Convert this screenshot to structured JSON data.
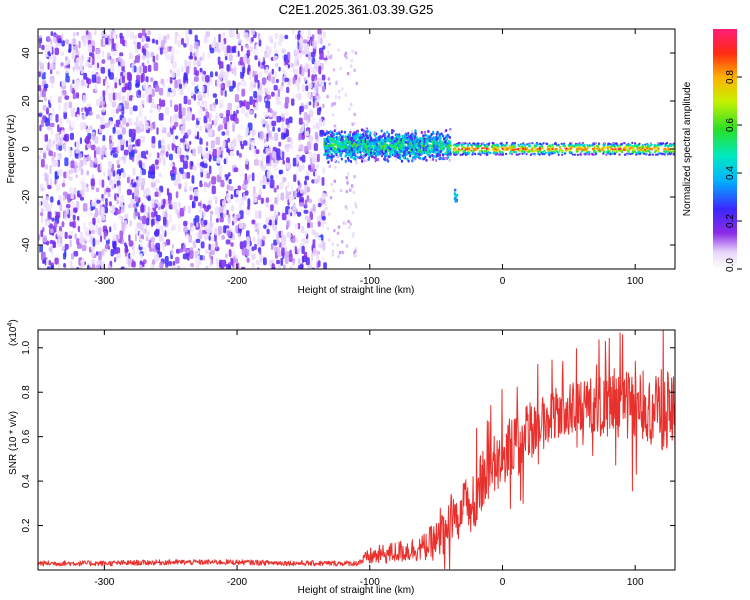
{
  "title": "C2E1.2025.361.03.39.G25",
  "chart_data": [
    {
      "type": "heatmap",
      "xlabel": "Height of straight line (km)",
      "ylabel": "Frequency (Hz)",
      "xlim": [
        -350,
        130
      ],
      "ylim": [
        -50,
        50
      ],
      "xticks": [
        -300,
        -200,
        -100,
        0,
        100
      ],
      "yticks": [
        -40,
        -20,
        0,
        20,
        40
      ],
      "colorbar": {
        "label": "Normalized spectral amplitude",
        "range": [
          0,
          1
        ],
        "ticks": [
          0.0,
          0.2,
          0.4,
          0.6,
          0.8
        ]
      },
      "regions": [
        {
          "name": "broadband noise",
          "x_range": [
            -350,
            -135
          ],
          "freq_range": [
            -50,
            50
          ],
          "amplitude": 0.15
        },
        {
          "name": "noisy signal band",
          "x_range": [
            -135,
            -40
          ],
          "center_hz": 2,
          "half_width_hz": 6,
          "amplitude": 0.3
        },
        {
          "name": "narrow signal line",
          "x_range": [
            -40,
            130
          ],
          "center_hz": 0.5,
          "half_width_hz": 2.5,
          "amplitude": 0.9
        }
      ]
    },
    {
      "type": "line",
      "xlabel": "Height of straight line (km)",
      "ylabel": "SNR (10 * v/v)",
      "y_multiplier": "(x10",
      "y_multiplier_exp": "4",
      "y_multiplier_close": ")",
      "xlim": [
        -350,
        130
      ],
      "ylim": [
        0,
        1.08
      ],
      "xticks": [
        -300,
        -200,
        -100,
        0,
        100
      ],
      "yticks": [
        0.2,
        0.4,
        0.6,
        0.8,
        1.0
      ],
      "color": "#e8302c",
      "trend": {
        "x": [
          -350,
          -300,
          -250,
          -200,
          -150,
          -110,
          -100,
          -80,
          -60,
          -45,
          -35,
          -20,
          -10,
          0,
          20,
          40,
          60,
          80,
          100,
          115,
          130
        ],
        "y": [
          0.03,
          0.03,
          0.035,
          0.035,
          0.03,
          0.03,
          0.06,
          0.08,
          0.1,
          0.15,
          0.22,
          0.34,
          0.45,
          0.52,
          0.62,
          0.7,
          0.73,
          0.74,
          0.73,
          0.72,
          0.72
        ]
      },
      "noise_amplitude": {
        "x": [
          -350,
          -110,
          -100,
          -60,
          -40,
          -20,
          0,
          40,
          80,
          100,
          130
        ],
        "y": [
          0.012,
          0.012,
          0.04,
          0.06,
          0.12,
          0.14,
          0.14,
          0.12,
          0.14,
          0.17,
          0.2
        ]
      }
    }
  ]
}
